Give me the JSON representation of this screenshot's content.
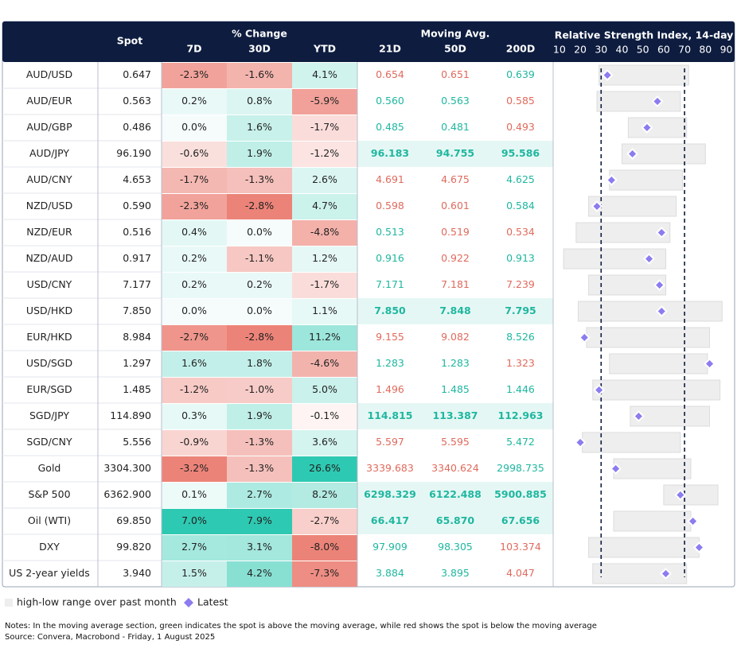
{
  "chart_data": {
    "type": "table-range",
    "rows": [
      "AUD/USD",
      "AUD/EUR",
      "AUD/GBP",
      "AUD/JPY",
      "AUD/CNY",
      "NZD/USD",
      "NZD/EUR",
      "NZD/AUD",
      "USD/CNY",
      "USD/HKD",
      "EUR/HKD",
      "USD/SGD",
      "EUR/SGD",
      "SGD/JPY",
      "SGD/CNY",
      "Gold",
      "S&P 500",
      "Oil (WTI)",
      "DXY",
      "US 2-year yields"
    ],
    "spot": {
      "name": "Spot",
      "values": [
        0.647,
        0.563,
        0.486,
        96.19,
        4.653,
        0.59,
        0.516,
        0.917,
        7.177,
        7.85,
        8.984,
        1.297,
        1.485,
        114.89,
        5.556,
        3304.3,
        6362.9,
        69.85,
        99.82,
        3.94
      ],
      "value_labels": [
        "0.647",
        "0.563",
        "0.486",
        "96.190",
        "4.653",
        "0.590",
        "0.516",
        "0.917",
        "7.177",
        "7.850",
        "8.984",
        "1.297",
        "1.485",
        "114.890",
        "5.556",
        "3304.300",
        "6362.900",
        "69.850",
        "99.820",
        "3.940"
      ]
    },
    "change": {
      "title": "% Change",
      "positive_color": "#2ec9b2",
      "negative_color": "#ec8378",
      "series": [
        {
          "name": "7D",
          "values": [
            -2.3,
            0.2,
            0.0,
            -0.6,
            -1.7,
            -2.3,
            0.4,
            0.2,
            0.2,
            0.0,
            -2.7,
            1.6,
            -1.2,
            0.3,
            -0.9,
            -3.2,
            0.1,
            7.0,
            2.7,
            1.5
          ],
          "value_labels": [
            "-2.3%",
            "0.2%",
            "0.0%",
            "-0.6%",
            "-1.7%",
            "-2.3%",
            "0.4%",
            "0.2%",
            "0.2%",
            "0.0%",
            "-2.7%",
            "1.6%",
            "-1.2%",
            "0.3%",
            "-0.9%",
            "-3.2%",
            "0.1%",
            "7.0%",
            "2.7%",
            "1.5%"
          ]
        },
        {
          "name": "30D",
          "values": [
            -1.6,
            0.8,
            1.6,
            1.9,
            -1.3,
            -2.8,
            0.0,
            -1.1,
            0.2,
            0.0,
            -2.8,
            1.8,
            -1.0,
            1.9,
            -1.3,
            -1.3,
            2.7,
            7.9,
            3.1,
            4.2
          ],
          "value_labels": [
            "-1.6%",
            "0.8%",
            "1.6%",
            "1.9%",
            "-1.3%",
            "-2.8%",
            "0.0%",
            "-1.1%",
            "0.2%",
            "0.0%",
            "-2.8%",
            "1.8%",
            "-1.0%",
            "1.9%",
            "-1.3%",
            "-1.3%",
            "2.7%",
            "7.9%",
            "3.1%",
            "4.2%"
          ]
        },
        {
          "name": "YTD",
          "values": [
            4.1,
            -5.9,
            -1.7,
            -1.2,
            2.6,
            4.7,
            -4.8,
            1.2,
            -1.7,
            1.1,
            11.2,
            -4.6,
            5.0,
            -0.1,
            3.6,
            26.6,
            8.2,
            -2.7,
            -8.0,
            -7.3
          ],
          "value_labels": [
            "4.1%",
            "-5.9%",
            "-1.7%",
            "-1.2%",
            "2.6%",
            "4.7%",
            "-4.8%",
            "1.2%",
            "-1.7%",
            "1.1%",
            "11.2%",
            "-4.6%",
            "5.0%",
            "-0.1%",
            "3.6%",
            "26.6%",
            "8.2%",
            "-2.7%",
            "-8.0%",
            "-7.3%"
          ]
        }
      ]
    },
    "moving_avg": {
      "title": "Moving Avg.",
      "above_color": "#1fb7a0",
      "below_color": "#e06a5c",
      "highlight_color": "#e5f7f4",
      "series": [
        {
          "name": "21D",
          "values": [
            0.654,
            0.56,
            0.485,
            96.183,
            4.691,
            0.598,
            0.513,
            0.916,
            7.171,
            7.85,
            9.155,
            1.283,
            1.496,
            114.815,
            5.597,
            3339.683,
            6298.329,
            66.417,
            97.909,
            3.884
          ],
          "value_labels": [
            "0.654",
            "0.560",
            "0.485",
            "96.183",
            "4.691",
            "0.598",
            "0.513",
            "0.916",
            "7.171",
            "7.850",
            "9.155",
            "1.283",
            "1.496",
            "114.815",
            "5.597",
            "3339.683",
            "6298.329",
            "66.417",
            "97.909",
            "3.884"
          ]
        },
        {
          "name": "50D",
          "values": [
            0.651,
            0.563,
            0.481,
            94.755,
            4.675,
            0.601,
            0.519,
            0.922,
            7.181,
            7.848,
            9.082,
            1.283,
            1.485,
            113.387,
            5.595,
            3340.624,
            6122.488,
            65.87,
            98.305,
            3.895
          ],
          "value_labels": [
            "0.651",
            "0.563",
            "0.481",
            "94.755",
            "4.675",
            "0.601",
            "0.519",
            "0.922",
            "7.181",
            "7.848",
            "9.082",
            "1.283",
            "1.485",
            "113.387",
            "5.595",
            "3340.624",
            "6122.488",
            "65.870",
            "98.305",
            "3.895"
          ]
        },
        {
          "name": "200D",
          "values": [
            0.639,
            0.585,
            0.493,
            95.586,
            4.625,
            0.584,
            0.534,
            0.913,
            7.239,
            7.795,
            8.526,
            1.323,
            1.446,
            112.963,
            5.472,
            2998.735,
            5900.885,
            67.656,
            103.374,
            4.047
          ],
          "value_labels": [
            "0.639",
            "0.585",
            "0.493",
            "95.586",
            "4.625",
            "0.584",
            "0.534",
            "0.913",
            "7.239",
            "7.795",
            "8.526",
            "1.323",
            "1.446",
            "112.963",
            "5.472",
            "2998.735",
            "5900.885",
            "67.656",
            "103.374",
            "4.047"
          ]
        }
      ]
    },
    "rsi": {
      "title": "Relative Strength Index, 14-day",
      "xlim": [
        7,
        94
      ],
      "xticks": [
        10,
        20,
        30,
        40,
        50,
        60,
        70,
        80,
        90
      ],
      "thresholds": [
        30,
        70
      ],
      "range_color": "#eeeeee",
      "latest_color": "#8b7cf0",
      "low": [
        29,
        28,
        43,
        40,
        34,
        24,
        18,
        12,
        24,
        19,
        23,
        34,
        26,
        44,
        21,
        36,
        60,
        36,
        24,
        26
      ],
      "high": [
        72,
        68,
        71,
        80,
        69,
        66,
        63,
        61,
        61,
        88,
        82,
        81,
        87,
        82,
        68,
        73,
        86,
        73,
        77,
        71
      ],
      "latest": [
        33,
        57,
        52,
        45,
        35,
        28,
        59,
        53,
        58,
        59,
        22,
        82,
        29,
        48,
        20,
        37,
        68,
        74,
        77,
        61
      ]
    },
    "legend": [
      "high-low range over past month",
      "Latest"
    ],
    "notes": "Notes: In the moving average section, green indicates the spot is above the moving average, while red shows the spot is below the moving average",
    "source": "Source: Convera, Macrobond - Friday, 1 August 2025"
  }
}
